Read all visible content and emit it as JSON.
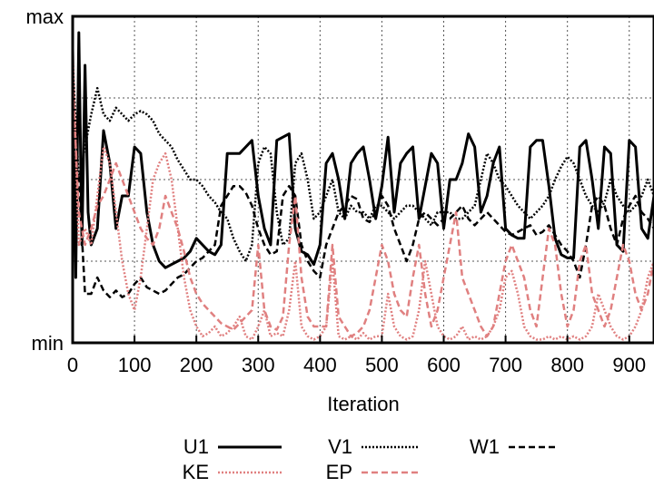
{
  "chart_data": {
    "type": "line",
    "xlabel": "Iteration",
    "ylabel": "",
    "xlim": [
      0,
      940
    ],
    "ylim": [
      0,
      1
    ],
    "x_ticks": [
      0,
      100,
      200,
      300,
      400,
      500,
      600,
      700,
      800,
      900
    ],
    "y_tick_labels": {
      "min": "min",
      "max": "max"
    },
    "grid": true,
    "legend_position": "bottom",
    "series": [
      {
        "name": "U1",
        "color": "#000000",
        "dash": "solid",
        "x": [
          0,
          5,
          10,
          15,
          20,
          25,
          30,
          40,
          50,
          60,
          70,
          80,
          90,
          100,
          110,
          120,
          130,
          140,
          150,
          160,
          170,
          180,
          190,
          200,
          210,
          220,
          230,
          240,
          250,
          260,
          270,
          280,
          290,
          300,
          310,
          320,
          330,
          340,
          350,
          360,
          370,
          380,
          390,
          400,
          410,
          420,
          430,
          440,
          450,
          460,
          470,
          480,
          490,
          500,
          510,
          520,
          530,
          540,
          550,
          560,
          570,
          580,
          590,
          600,
          610,
          620,
          630,
          640,
          650,
          660,
          670,
          680,
          690,
          700,
          710,
          720,
          730,
          740,
          750,
          760,
          770,
          780,
          790,
          800,
          810,
          820,
          830,
          840,
          850,
          860,
          870,
          880,
          890,
          900,
          910,
          920,
          930,
          940
        ],
        "y": [
          0.9,
          0.2,
          0.95,
          0.3,
          0.85,
          0.4,
          0.3,
          0.35,
          0.65,
          0.55,
          0.35,
          0.45,
          0.45,
          0.6,
          0.58,
          0.4,
          0.3,
          0.25,
          0.23,
          0.24,
          0.25,
          0.26,
          0.28,
          0.32,
          0.3,
          0.28,
          0.27,
          0.3,
          0.58,
          0.58,
          0.58,
          0.6,
          0.62,
          0.45,
          0.35,
          0.3,
          0.62,
          0.63,
          0.64,
          0.35,
          0.28,
          0.27,
          0.24,
          0.3,
          0.55,
          0.58,
          0.5,
          0.38,
          0.55,
          0.58,
          0.6,
          0.5,
          0.38,
          0.48,
          0.63,
          0.4,
          0.55,
          0.58,
          0.6,
          0.38,
          0.48,
          0.58,
          0.55,
          0.35,
          0.5,
          0.5,
          0.55,
          0.64,
          0.6,
          0.4,
          0.45,
          0.55,
          0.6,
          0.35,
          0.33,
          0.32,
          0.32,
          0.6,
          0.62,
          0.62,
          0.48,
          0.32,
          0.27,
          0.26,
          0.26,
          0.6,
          0.62,
          0.5,
          0.35,
          0.6,
          0.58,
          0.3,
          0.28,
          0.62,
          0.6,
          0.35,
          0.32,
          0.45
        ]
      },
      {
        "name": "V1",
        "color": "#000000",
        "dash": "dotted",
        "x": [
          0,
          10,
          20,
          30,
          40,
          50,
          60,
          70,
          80,
          90,
          100,
          110,
          120,
          130,
          140,
          150,
          160,
          170,
          180,
          190,
          200,
          210,
          220,
          230,
          240,
          250,
          260,
          270,
          280,
          290,
          300,
          310,
          320,
          330,
          340,
          350,
          360,
          370,
          380,
          390,
          400,
          410,
          420,
          430,
          440,
          450,
          460,
          470,
          480,
          490,
          500,
          510,
          520,
          530,
          540,
          550,
          560,
          570,
          580,
          590,
          600,
          610,
          620,
          630,
          640,
          650,
          660,
          670,
          680,
          690,
          700,
          710,
          720,
          730,
          740,
          750,
          760,
          770,
          780,
          790,
          800,
          810,
          820,
          830,
          840,
          850,
          860,
          870,
          880,
          890,
          900,
          910,
          920,
          930,
          940
        ],
        "y": [
          0.85,
          0.5,
          0.6,
          0.7,
          0.78,
          0.7,
          0.68,
          0.72,
          0.7,
          0.68,
          0.7,
          0.71,
          0.7,
          0.68,
          0.64,
          0.62,
          0.6,
          0.56,
          0.53,
          0.5,
          0.5,
          0.48,
          0.45,
          0.43,
          0.4,
          0.38,
          0.32,
          0.28,
          0.25,
          0.3,
          0.55,
          0.6,
          0.58,
          0.4,
          0.3,
          0.32,
          0.55,
          0.58,
          0.5,
          0.38,
          0.4,
          0.45,
          0.5,
          0.4,
          0.38,
          0.42,
          0.4,
          0.4,
          0.38,
          0.42,
          0.42,
          0.4,
          0.38,
          0.4,
          0.42,
          0.42,
          0.4,
          0.38,
          0.36,
          0.4,
          0.4,
          0.4,
          0.38,
          0.38,
          0.4,
          0.42,
          0.5,
          0.58,
          0.55,
          0.5,
          0.48,
          0.45,
          0.42,
          0.4,
          0.38,
          0.4,
          0.42,
          0.45,
          0.5,
          0.54,
          0.57,
          0.55,
          0.5,
          0.45,
          0.42,
          0.4,
          0.43,
          0.5,
          0.45,
          0.42,
          0.4,
          0.42,
          0.45,
          0.5,
          0.45
        ]
      },
      {
        "name": "W1",
        "color": "#000000",
        "dash": "dashed",
        "x": [
          0,
          10,
          20,
          30,
          40,
          50,
          60,
          70,
          80,
          90,
          100,
          110,
          120,
          130,
          140,
          150,
          160,
          170,
          180,
          190,
          200,
          210,
          220,
          230,
          240,
          250,
          260,
          270,
          280,
          290,
          300,
          310,
          320,
          330,
          340,
          350,
          360,
          370,
          380,
          390,
          400,
          410,
          420,
          430,
          440,
          450,
          460,
          470,
          480,
          490,
          500,
          510,
          520,
          530,
          540,
          550,
          560,
          570,
          580,
          590,
          600,
          610,
          620,
          630,
          640,
          650,
          660,
          670,
          680,
          690,
          700,
          710,
          720,
          730,
          740,
          750,
          760,
          770,
          780,
          790,
          800,
          810,
          820,
          830,
          840,
          850,
          860,
          870,
          880,
          890,
          900,
          910,
          920,
          930,
          940
        ],
        "y": [
          0.6,
          0.5,
          0.15,
          0.15,
          0.2,
          0.16,
          0.14,
          0.16,
          0.14,
          0.15,
          0.18,
          0.2,
          0.17,
          0.16,
          0.15,
          0.16,
          0.18,
          0.2,
          0.21,
          0.23,
          0.25,
          0.26,
          0.28,
          0.3,
          0.42,
          0.45,
          0.48,
          0.48,
          0.46,
          0.42,
          0.35,
          0.3,
          0.27,
          0.28,
          0.45,
          0.48,
          0.45,
          0.3,
          0.25,
          0.22,
          0.2,
          0.3,
          0.35,
          0.4,
          0.42,
          0.45,
          0.44,
          0.38,
          0.37,
          0.4,
          0.45,
          0.42,
          0.35,
          0.3,
          0.25,
          0.3,
          0.38,
          0.4,
          0.38,
          0.36,
          0.38,
          0.38,
          0.4,
          0.42,
          0.38,
          0.36,
          0.38,
          0.4,
          0.38,
          0.36,
          0.34,
          0.33,
          0.34,
          0.35,
          0.36,
          0.33,
          0.34,
          0.36,
          0.33,
          0.3,
          0.28,
          0.25,
          0.2,
          0.3,
          0.42,
          0.45,
          0.42,
          0.35,
          0.3,
          0.38,
          0.42,
          0.45,
          0.4,
          0.38,
          0.35
        ]
      },
      {
        "name": "KE",
        "color": "#e08080",
        "dash": "dotted",
        "x": [
          0,
          10,
          20,
          30,
          40,
          50,
          60,
          70,
          80,
          90,
          100,
          110,
          120,
          130,
          140,
          150,
          160,
          170,
          180,
          190,
          200,
          210,
          220,
          230,
          240,
          250,
          260,
          270,
          280,
          290,
          300,
          310,
          320,
          330,
          340,
          350,
          360,
          370,
          380,
          390,
          400,
          410,
          420,
          430,
          440,
          450,
          460,
          470,
          480,
          490,
          500,
          510,
          520,
          530,
          540,
          550,
          560,
          570,
          580,
          590,
          600,
          610,
          620,
          630,
          640,
          650,
          660,
          670,
          680,
          690,
          700,
          710,
          720,
          730,
          740,
          750,
          760,
          770,
          780,
          790,
          800,
          810,
          820,
          830,
          840,
          850,
          860,
          870,
          880,
          890,
          900,
          910,
          920,
          930,
          940
        ],
        "y": [
          0.9,
          0.3,
          0.35,
          0.3,
          0.45,
          0.6,
          0.55,
          0.4,
          0.25,
          0.15,
          0.1,
          0.2,
          0.35,
          0.5,
          0.55,
          0.58,
          0.5,
          0.35,
          0.2,
          0.1,
          0.05,
          0.02,
          0.03,
          0.05,
          0.02,
          0.03,
          0.05,
          0.08,
          0.02,
          0.01,
          0.05,
          0.1,
          0.02,
          0.03,
          0.02,
          0.1,
          0.25,
          0.05,
          0.02,
          0.01,
          0.02,
          0.05,
          0.25,
          0.02,
          0.01,
          0.02,
          0.01,
          0.03,
          0.01,
          0.02,
          0.02,
          0.15,
          0.05,
          0.02,
          0.01,
          0.02,
          0.1,
          0.25,
          0.15,
          0.05,
          0.02,
          0.01,
          0.02,
          0.05,
          0.01,
          0.02,
          0.01,
          0.02,
          0.05,
          0.1,
          0.2,
          0.22,
          0.15,
          0.05,
          0.02,
          0.01,
          0.01,
          0.02,
          0.01,
          0.02,
          0.01,
          0.02,
          0.01,
          0.02,
          0.05,
          0.15,
          0.1,
          0.05,
          0.02,
          0.01,
          0.02,
          0.05,
          0.1,
          0.2,
          0.25
        ]
      },
      {
        "name": "EP",
        "color": "#e08080",
        "dash": "dashed",
        "x": [
          0,
          10,
          20,
          30,
          40,
          50,
          60,
          70,
          80,
          90,
          100,
          110,
          120,
          130,
          140,
          150,
          160,
          170,
          180,
          190,
          200,
          210,
          220,
          230,
          240,
          250,
          260,
          270,
          280,
          290,
          300,
          310,
          320,
          330,
          340,
          350,
          360,
          370,
          380,
          390,
          400,
          410,
          420,
          430,
          440,
          450,
          460,
          470,
          480,
          490,
          500,
          510,
          520,
          530,
          540,
          550,
          560,
          570,
          580,
          590,
          600,
          610,
          620,
          630,
          640,
          650,
          660,
          670,
          680,
          690,
          700,
          710,
          720,
          730,
          740,
          750,
          760,
          770,
          780,
          790,
          800,
          810,
          820,
          830,
          840,
          850,
          860,
          870,
          880,
          890,
          900,
          910,
          920,
          930,
          940
        ],
        "y": [
          0.8,
          0.4,
          0.3,
          0.35,
          0.42,
          0.45,
          0.5,
          0.55,
          0.5,
          0.45,
          0.4,
          0.35,
          0.32,
          0.3,
          0.35,
          0.45,
          0.4,
          0.35,
          0.28,
          0.2,
          0.15,
          0.12,
          0.1,
          0.08,
          0.06,
          0.05,
          0.04,
          0.06,
          0.08,
          0.1,
          0.3,
          0.1,
          0.05,
          0.04,
          0.08,
          0.3,
          0.45,
          0.2,
          0.08,
          0.05,
          0.05,
          0.05,
          0.3,
          0.08,
          0.05,
          0.02,
          0.03,
          0.05,
          0.1,
          0.2,
          0.3,
          0.25,
          0.15,
          0.1,
          0.08,
          0.2,
          0.3,
          0.15,
          0.05,
          0.1,
          0.2,
          0.3,
          0.4,
          0.2,
          0.15,
          0.1,
          0.05,
          0.02,
          0.05,
          0.15,
          0.25,
          0.3,
          0.25,
          0.2,
          0.1,
          0.05,
          0.2,
          0.35,
          0.3,
          0.15,
          0.05,
          0.1,
          0.25,
          0.3,
          0.15,
          0.1,
          0.05,
          0.1,
          0.2,
          0.3,
          0.25,
          0.15,
          0.1,
          0.15,
          0.25
        ]
      }
    ]
  }
}
